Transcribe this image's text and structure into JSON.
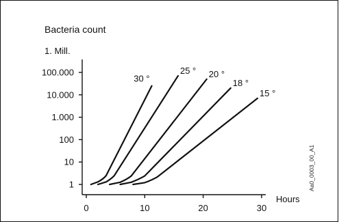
{
  "chart_data": {
    "type": "line",
    "title": "Bacteria count",
    "xlabel": "Hours",
    "ylabel": "",
    "yscale": "log",
    "xlim": [
      0,
      30
    ],
    "ylim": [
      0.7,
      1000000
    ],
    "x_ticks": [
      0,
      10,
      20,
      30
    ],
    "x_tick_labels": [
      "0",
      "10",
      "20",
      "30"
    ],
    "y_ticks": [
      1,
      10,
      100,
      1000,
      10000,
      100000,
      1000000
    ],
    "y_tick_labels": [
      "1",
      "10",
      "100",
      "1.000",
      "10.000",
      "100.000",
      "1. Mill."
    ],
    "grid": false,
    "legend": "none",
    "series": [
      {
        "name": "30°",
        "label_text": "30 °",
        "x": [
          0.8,
          2.0,
          3.0,
          3.4,
          11.2
        ],
        "y": [
          1,
          1.3,
          1.8,
          2.5,
          25000
        ]
      },
      {
        "name": "25°",
        "label_text": "25 °",
        "x": [
          2.0,
          3.4,
          4.3,
          4.8,
          15.7
        ],
        "y": [
          1,
          1.3,
          1.8,
          2.5,
          70000
        ]
      },
      {
        "name": "20°",
        "label_text": "20 °",
        "x": [
          4.0,
          5.8,
          7.0,
          7.7,
          20.6
        ],
        "y": [
          1,
          1.25,
          1.7,
          2.4,
          50000
        ]
      },
      {
        "name": "18°",
        "label_text": "18 °",
        "x": [
          5.8,
          7.7,
          9.0,
          10.0,
          24.7
        ],
        "y": [
          1,
          1.25,
          1.7,
          2.4,
          20000
        ]
      },
      {
        "name": "15°",
        "label_text": "15 °",
        "x": [
          8.0,
          10.0,
          11.3,
          12.2,
          29.3
        ],
        "y": [
          1,
          1.2,
          1.6,
          2.2,
          7000
        ]
      }
    ]
  },
  "figure_code": "Aa0_0003_00_A1"
}
